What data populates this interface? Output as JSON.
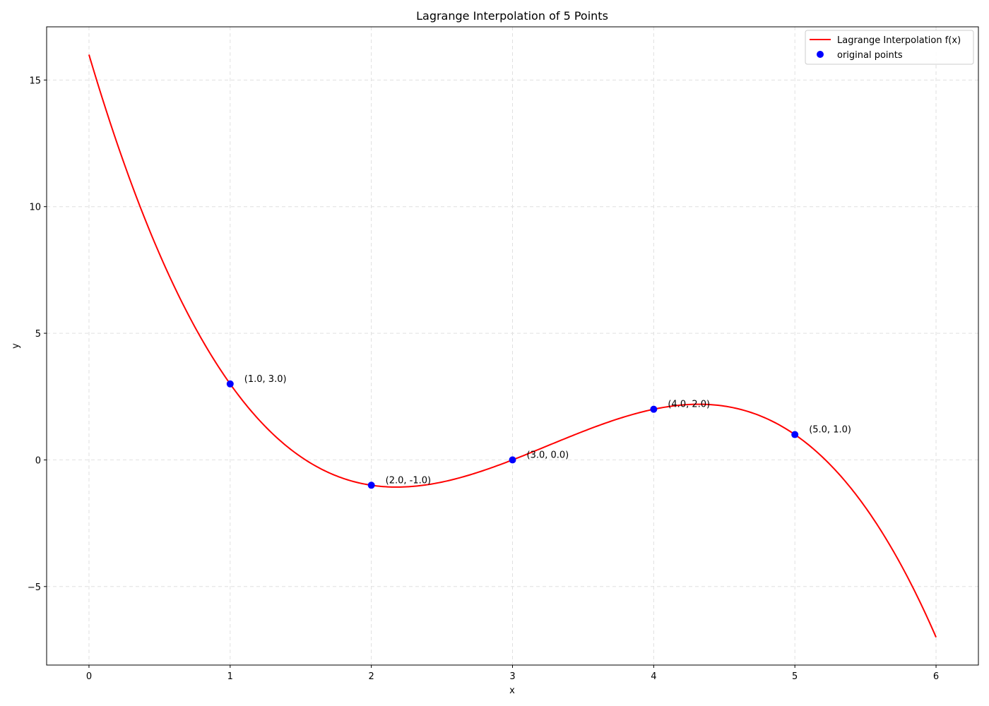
{
  "chart_data": {
    "type": "line",
    "title": "Lagrange Interpolation of 5 Points",
    "xlabel": "x",
    "ylabel": "y",
    "xlim": [
      -0.3,
      6.3
    ],
    "ylim": [
      -8.1,
      17.1
    ],
    "xticks": [
      0,
      1,
      2,
      3,
      4,
      5,
      6
    ],
    "yticks": [
      -5,
      0,
      5,
      10,
      15
    ],
    "ytick_labels": [
      "−5",
      "0",
      "5",
      "10",
      "15"
    ],
    "grid": true,
    "legend_position": "top-right",
    "series": [
      {
        "name": "Lagrange Interpolation f(x)",
        "type": "line",
        "color": "#ff0000",
        "x": [
          0,
          1,
          2,
          3,
          4,
          5,
          6
        ],
        "y": [
          16,
          3,
          -1,
          0,
          2,
          1,
          -7
        ]
      },
      {
        "name": "original points",
        "type": "scatter",
        "color": "#0000ff",
        "x": [
          1,
          2,
          3,
          4,
          5
        ],
        "y": [
          3,
          -1,
          0,
          2,
          1
        ],
        "labels": [
          "(1.0, 3.0)",
          "(2.0, -1.0)",
          "(3.0, 0.0)",
          "(4.0, 2.0)",
          "(5.0, 1.0)"
        ]
      }
    ]
  }
}
